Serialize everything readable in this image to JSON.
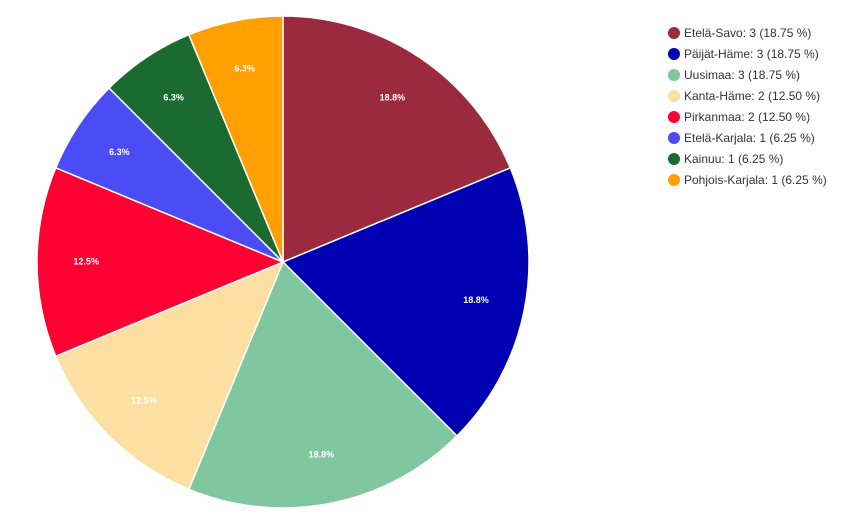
{
  "chart_data": {
    "type": "pie",
    "categories": [
      "Etelä-Savo: 3 (18.75 %)",
      "Päijät-Häme: 3 (18.75 %)",
      "Uusimaa: 3 (18.75 %)",
      "Kanta-Häme: 2 (12.50 %)",
      "Pirkanmaa: 2 (12.50 %)",
      "Etelä-Karjala: 1 (6.25 %)",
      "Kainuu: 1 (6.25 %)",
      "Pohjois-Karjala: 1 (6.25 %)"
    ],
    "values": [
      18.75,
      18.75,
      18.75,
      12.5,
      12.5,
      6.25,
      6.25,
      6.25
    ],
    "value_labels": [
      "18.8%",
      "18.8%",
      "18.8%",
      "12.5%",
      "12.5%",
      "6.3%",
      "6.3%",
      "6.3%"
    ],
    "colors": [
      "#9b2a3e",
      "#0000b3",
      "#80c7a0",
      "#fbdfa3",
      "#ff0033",
      "#4c4cf7",
      "#1b6b30",
      "#ffa000"
    ],
    "legend": "top-right"
  }
}
